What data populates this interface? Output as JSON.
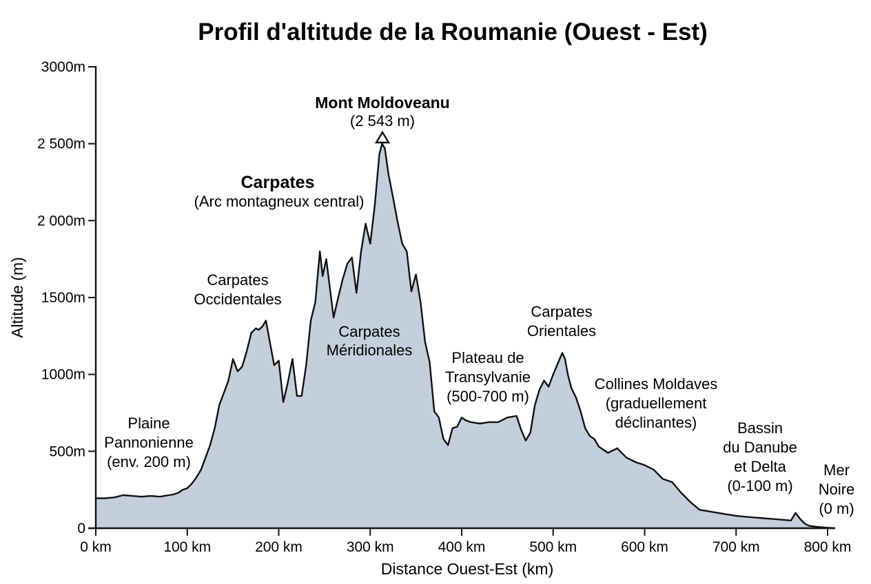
{
  "chart_data": {
    "type": "area",
    "title": "Profil d'altitude de la Roumanie (Ouest - Est)",
    "xlabel": "Distance Ouest-Est (km)",
    "ylabel": "Altitude (m)",
    "xlim": [
      0,
      810
    ],
    "ylim": [
      0,
      3000
    ],
    "grid": false,
    "legend": null,
    "x_ticks": [
      0,
      100,
      200,
      300,
      400,
      500,
      600,
      700,
      800
    ],
    "x_tick_labels": [
      "0 km",
      "100 km",
      "200 km",
      "300 km",
      "400 km",
      "500 km",
      "600 km",
      "700 km",
      "800 km"
    ],
    "y_ticks": [
      0,
      500,
      1000,
      1500,
      2000,
      2500,
      3000
    ],
    "y_tick_labels": [
      "0",
      "500m",
      "1000m",
      "1500m",
      "2 000m",
      "2 500m",
      "3000m"
    ],
    "fill_color": "#c3cfdc",
    "line_color": "#111111",
    "series": [
      {
        "name": "Altitude",
        "x": [
          0,
          10,
          20,
          30,
          40,
          50,
          60,
          70,
          80,
          85,
          90,
          95,
          100,
          105,
          110,
          115,
          120,
          125,
          130,
          135,
          140,
          145,
          150,
          155,
          160,
          165,
          170,
          175,
          178,
          182,
          186,
          190,
          195,
          200,
          205,
          210,
          215,
          220,
          225,
          230,
          235,
          240,
          245,
          248,
          252,
          256,
          260,
          265,
          270,
          275,
          280,
          285,
          290,
          295,
          300,
          305,
          310,
          313,
          316,
          320,
          325,
          330,
          335,
          340,
          345,
          350,
          355,
          360,
          365,
          370,
          375,
          380,
          385,
          390,
          395,
          400,
          405,
          410,
          420,
          430,
          440,
          450,
          460,
          465,
          470,
          475,
          480,
          485,
          490,
          495,
          500,
          505,
          510,
          513,
          516,
          520,
          525,
          530,
          535,
          540,
          545,
          550,
          560,
          570,
          580,
          590,
          600,
          610,
          620,
          630,
          640,
          650,
          660,
          670,
          680,
          690,
          700,
          710,
          720,
          730,
          740,
          750,
          760,
          765,
          770,
          775,
          780,
          790,
          800,
          808
        ],
        "y": [
          195,
          195,
          200,
          215,
          210,
          205,
          210,
          205,
          215,
          220,
          230,
          250,
          260,
          290,
          330,
          380,
          460,
          540,
          650,
          800,
          880,
          960,
          1100,
          1020,
          1050,
          1150,
          1270,
          1300,
          1290,
          1310,
          1350,
          1220,
          1060,
          1090,
          820,
          950,
          1100,
          860,
          860,
          1060,
          1350,
          1470,
          1800,
          1640,
          1750,
          1560,
          1370,
          1500,
          1620,
          1720,
          1760,
          1530,
          1800,
          1980,
          1850,
          2100,
          2430,
          2500,
          2470,
          2300,
          2150,
          1990,
          1850,
          1800,
          1540,
          1650,
          1470,
          1210,
          1080,
          760,
          720,
          580,
          540,
          650,
          660,
          720,
          700,
          690,
          680,
          690,
          690,
          720,
          730,
          640,
          570,
          620,
          800,
          900,
          960,
          920,
          1000,
          1070,
          1140,
          1100,
          1000,
          910,
          850,
          760,
          650,
          600,
          580,
          530,
          490,
          520,
          460,
          430,
          410,
          380,
          320,
          300,
          230,
          170,
          120,
          110,
          100,
          90,
          80,
          75,
          70,
          65,
          60,
          55,
          50,
          100,
          60,
          30,
          15,
          8,
          3,
          0
        ]
      }
    ],
    "annotations": [
      {
        "text": "Mont Moldoveanu",
        "bold": true,
        "x_km": 313,
        "y_m": 2750
      },
      {
        "text": "(2 543 m)",
        "bold": false,
        "x_km": 313,
        "y_m": 2640
      },
      {
        "text": "Carpates",
        "bold": true,
        "x_km": 200,
        "y_m": 2250
      },
      {
        "text": "(Arc montagneux central)",
        "bold": false,
        "x_km": 200,
        "y_m": 2140
      },
      {
        "text": "Carpates Occidentales",
        "x_km": 165,
        "y_m": 1600
      },
      {
        "text": "Carpates Méridionales",
        "x_km": 300,
        "y_m": 1270
      },
      {
        "text": "Plateau de Transylvanie (500-700 m)",
        "x_km": 408,
        "y_m": 900
      },
      {
        "text": "Carpates Orientales",
        "x_km": 510,
        "y_m": 1420
      },
      {
        "text": "Collines Moldaves (graduellement déclinantes)",
        "x_km": 610,
        "y_m": 870
      },
      {
        "text": "Bassin du Danube et Delta (0-100 m)",
        "x_km": 715,
        "y_m": 650
      },
      {
        "text": "Plaine Pannonienne (env. 200 m)",
        "x_km": 58,
        "y_m": 530
      },
      {
        "text": "Mer Noire (0 m)",
        "x_km": 810,
        "y_m": 330
      }
    ],
    "peak_marker": {
      "label": "Mont Moldoveanu",
      "altitude_m": 2543,
      "x_km": 313,
      "shape": "triangle"
    }
  },
  "labels": {
    "title": "Profil d'altitude de la Roumanie (Ouest - Est)",
    "xlabel": "Distance Ouest-Est (km)",
    "ylabel": "Altitude (m)",
    "moldoveanu_name": "Mont Moldoveanu",
    "moldoveanu_alt": "(2 543 m)",
    "carpates_name": "Carpates",
    "carpates_sub": "(Arc montagneux central)",
    "occ_1": "Carpates",
    "occ_2": "Occidentales",
    "mer_1": "Carpates",
    "mer_2": "Méridionales",
    "plat_1": "Plateau de",
    "plat_2": "Transylvanie",
    "plat_3": "(500-700 m)",
    "ori_1": "Carpates",
    "ori_2": "Orientales",
    "mold_1": "Collines Moldaves",
    "mold_2": "(graduellement",
    "mold_3": "déclinantes)",
    "dan_1": "Bassin",
    "dan_2": "du Danube",
    "dan_3": "et Delta",
    "dan_4": "(0-100 m)",
    "pann_1": "Plaine",
    "pann_2": "Pannonienne",
    "pann_3": "(env. 200 m)",
    "noire_1": "Mer",
    "noire_2": "Noire",
    "noire_3": "(0 m)"
  }
}
